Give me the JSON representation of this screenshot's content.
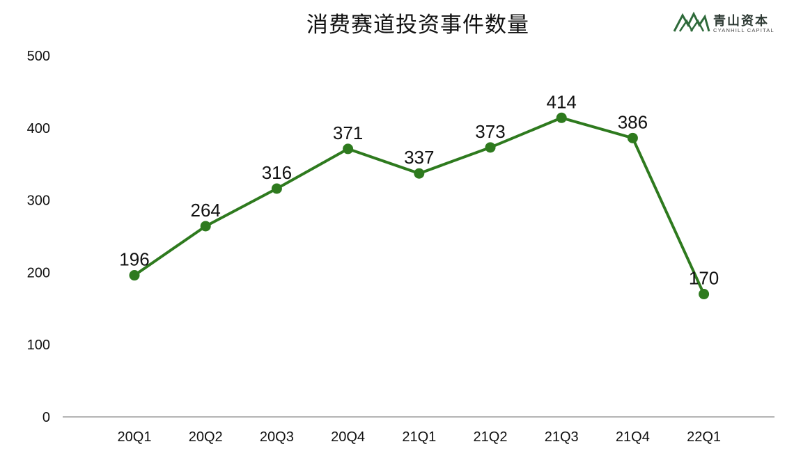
{
  "chart_data": {
    "type": "line",
    "title": "消费赛道投资事件数量",
    "categories": [
      "20Q1",
      "20Q2",
      "20Q3",
      "20Q4",
      "21Q1",
      "21Q2",
      "21Q3",
      "21Q4",
      "22Q1"
    ],
    "series": [
      {
        "values": [
          196,
          264,
          316,
          371,
          337,
          373,
          414,
          386,
          170
        ],
        "color": "#2e7a1e"
      }
    ],
    "ylim": [
      0,
      500
    ],
    "yticks": [
      "0",
      "100",
      "200",
      "300",
      "400",
      "500"
    ],
    "xlabel": "",
    "ylabel": "",
    "grid": false,
    "legend": "none",
    "data_labels": true
  },
  "logo": {
    "name_cn": "青山资本",
    "name_en": "CYANHILL CAPITAL",
    "icon": "mountain-logo-icon",
    "color": "#2e6a3a"
  }
}
